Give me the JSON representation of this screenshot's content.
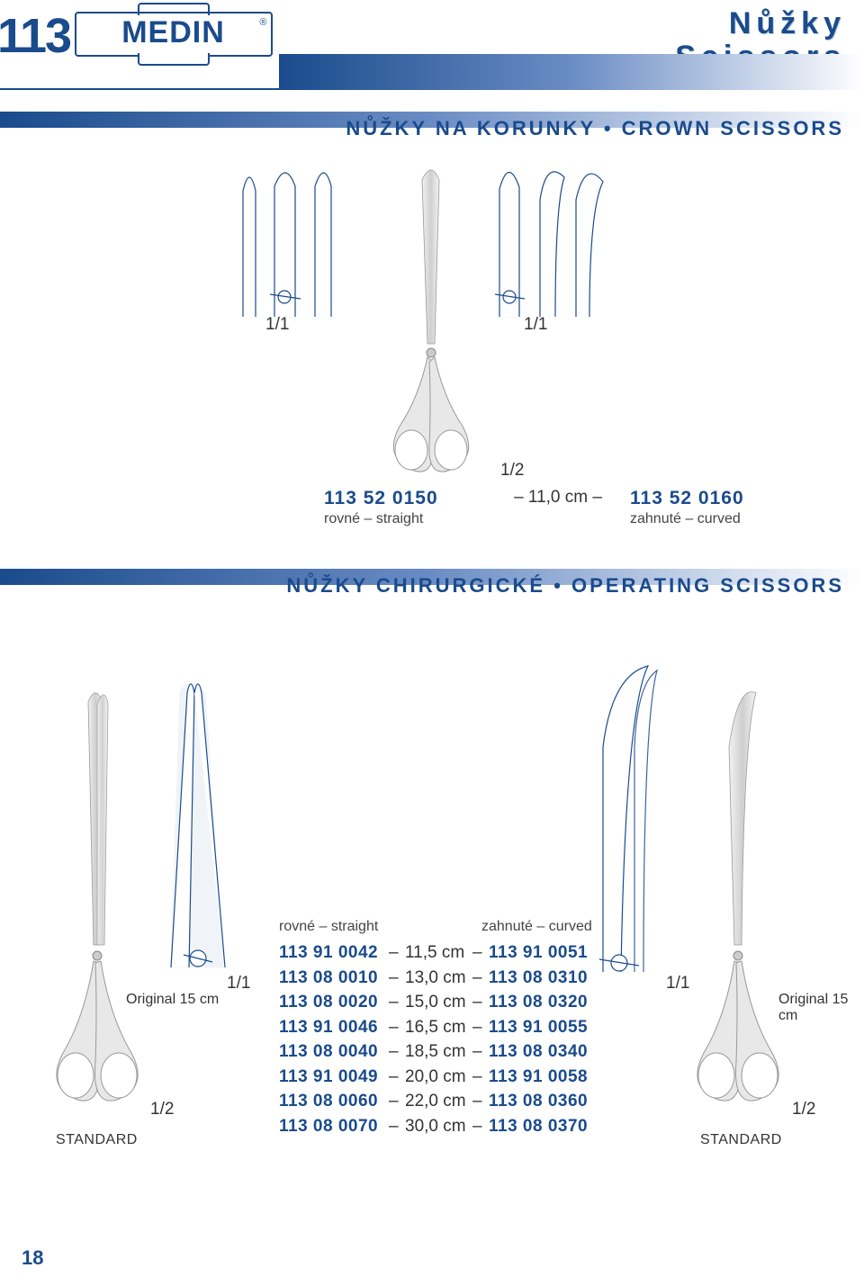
{
  "header": {
    "page_number": "113",
    "logo_text": "MEDIN",
    "title_line1": "Nůžky",
    "title_line2": "Scissors",
    "title_color": "#1a4b8c",
    "gradient_from": "#1a4b8c",
    "gradient_to": "#ffffff"
  },
  "section1": {
    "title": "NŮŽKY NA KORUNKY • CROWN SCISSORS",
    "left_tip_ratio": "1/1",
    "right_tip_ratio": "1/1",
    "center_ratio": "1/2",
    "left_code": "113 52 0150",
    "left_sub": "rovné – straight",
    "center_size": "– 11,0 cm –",
    "right_code": "113 52 0160",
    "right_sub": "zahnuté – curved"
  },
  "section2": {
    "title": "NŮŽKY CHIRURGICKÉ • OPERATING SCISSORS",
    "left_original": "Original 15 cm",
    "right_original": "Original 15 cm",
    "ratio_1_1_left": "1/1",
    "ratio_1_1_right": "1/1",
    "ratio_1_2_left": "1/2",
    "ratio_1_2_right": "1/2",
    "standard_left": "STANDARD",
    "standard_right": "STANDARD",
    "table_header_left": "rovné – straight",
    "table_header_right": "zahnuté – curved",
    "rows": [
      {
        "left": "113 91 0042",
        "size": "11,5 cm",
        "right": "113 91 0051"
      },
      {
        "left": "113 08 0010",
        "size": "13,0 cm",
        "right": "113 08 0310"
      },
      {
        "left": "113 08 0020",
        "size": "15,0 cm",
        "right": "113 08 0320"
      },
      {
        "left": "113 91 0046",
        "size": "16,5 cm",
        "right": "113 91 0055"
      },
      {
        "left": "113 08 0040",
        "size": "18,5 cm",
        "right": "113 08 0340"
      },
      {
        "left": "113 91 0049",
        "size": "20,0 cm",
        "right": "113 91 0058"
      },
      {
        "left": "113 08 0060",
        "size": "22,0 cm",
        "right": "113 08 0360"
      },
      {
        "left": "113 08 0070",
        "size": "30,0 cm",
        "right": "113 08 0370"
      }
    ]
  },
  "footer": {
    "page": "18"
  },
  "style": {
    "brand_color": "#1a4b8c",
    "code_fontsize": 21,
    "body_font": "Arial Narrow"
  }
}
